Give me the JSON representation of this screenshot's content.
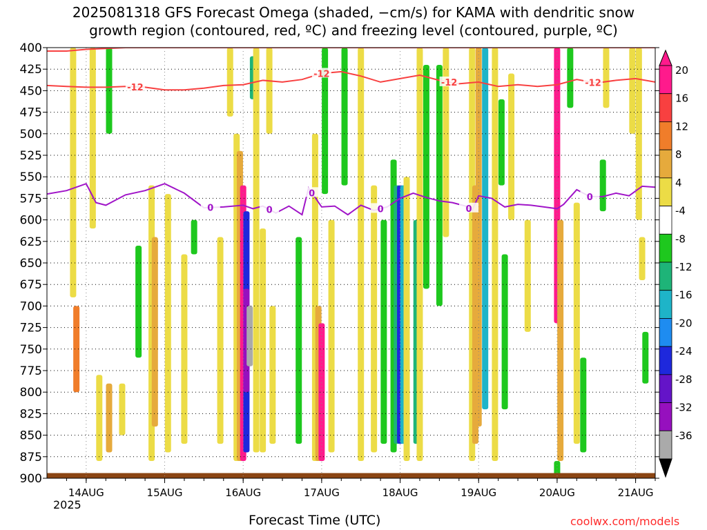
{
  "title_line1": "2025081318 GFS Forecast Omega (shaded, −cm/s) for KAMA with dendritic snow",
  "title_line2": "growth region (contoured, red, ºC) and freezing level (contoured, purple, ºC)",
  "xlabel": "Forecast Time (UTC)",
  "credit": "coolwx.com/models",
  "year": "2025",
  "chart_data": {
    "type": "heatmap",
    "y_axis": {
      "label": "",
      "range": [
        400,
        900
      ],
      "inverted": true,
      "ticks": [
        400,
        425,
        450,
        475,
        500,
        525,
        550,
        575,
        600,
        625,
        650,
        675,
        700,
        725,
        750,
        775,
        800,
        825,
        850,
        875,
        900
      ]
    },
    "x_axis": {
      "label": "Forecast Time (UTC)",
      "start_hour": -6,
      "end_hour": 180,
      "ticks": [
        {
          "label": "14AUG",
          "hour": 6
        },
        {
          "label": "15AUG",
          "hour": 30
        },
        {
          "label": "16AUG",
          "hour": 54
        },
        {
          "label": "17AUG",
          "hour": 78
        },
        {
          "label": "18AUG",
          "hour": 102
        },
        {
          "label": "19AUG",
          "hour": 126
        },
        {
          "label": "20AUG",
          "hour": 150
        },
        {
          "label": "21AUG",
          "hour": 174
        }
      ]
    },
    "grid": true,
    "colorbar": {
      "placement": "right",
      "tick_labels": [
        "20",
        "16",
        "12",
        "8",
        "4",
        "-4",
        "-8",
        "-12",
        "-16",
        "-20",
        "-24",
        "-28",
        "-32",
        "-36"
      ],
      "colors": [
        "#ff1a8c",
        "#f84040",
        "#f07d2a",
        "#e6aa3c",
        "#ecdc46",
        "#ffffff",
        "#1ec81e",
        "#1eb478",
        "#1eb4c8",
        "#1e8cf0",
        "#1e28dc",
        "#6414c8",
        "#9610be",
        "#aaaaaa"
      ]
    },
    "shaded_regions": [
      {
        "hour": 2,
        "p_top": 400,
        "p_bot": 690,
        "value": 6
      },
      {
        "hour": 3,
        "p_top": 700,
        "p_bot": 800,
        "value": 14
      },
      {
        "hour": 8,
        "p_top": 400,
        "p_bot": 610,
        "value": 6
      },
      {
        "hour": 10,
        "p_top": 780,
        "p_bot": 880,
        "value": 6
      },
      {
        "hour": 13,
        "p_top": 790,
        "p_bot": 870,
        "value": 10
      },
      {
        "hour": 13,
        "p_top": 400,
        "p_bot": 500,
        "value": -6
      },
      {
        "hour": 17,
        "p_top": 790,
        "p_bot": 850,
        "value": 6
      },
      {
        "hour": 22,
        "p_top": 630,
        "p_bot": 760,
        "value": -6
      },
      {
        "hour": 26,
        "p_top": 560,
        "p_bot": 880,
        "value": 6
      },
      {
        "hour": 27,
        "p_top": 620,
        "p_bot": 840,
        "value": 10
      },
      {
        "hour": 31,
        "p_top": 570,
        "p_bot": 870,
        "value": 6
      },
      {
        "hour": 36,
        "p_top": 640,
        "p_bot": 860,
        "value": 6
      },
      {
        "hour": 39,
        "p_top": 600,
        "p_bot": 640,
        "value": -6
      },
      {
        "hour": 47,
        "p_top": 620,
        "p_bot": 860,
        "value": 6
      },
      {
        "hour": 50,
        "p_top": 400,
        "p_bot": 480,
        "value": 6
      },
      {
        "hour": 52,
        "p_top": 500,
        "p_bot": 880,
        "value": 6
      },
      {
        "hour": 53,
        "p_top": 520,
        "p_bot": 880,
        "value": 10
      },
      {
        "hour": 54,
        "p_top": 560,
        "p_bot": 880,
        "value": 20
      },
      {
        "hour": 55,
        "p_top": 590,
        "p_bot": 870,
        "value": -20
      },
      {
        "hour": 55,
        "p_top": 680,
        "p_bot": 800,
        "value": -30
      },
      {
        "hour": 56,
        "p_top": 700,
        "p_bot": 770,
        "value": -36
      },
      {
        "hour": 57,
        "p_top": 410,
        "p_bot": 460,
        "value": -10
      },
      {
        "hour": 58,
        "p_top": 400,
        "p_bot": 870,
        "value": 6
      },
      {
        "hour": 60,
        "p_top": 610,
        "p_bot": 870,
        "value": 6
      },
      {
        "hour": 62,
        "p_top": 400,
        "p_bot": 500,
        "value": 6
      },
      {
        "hour": 63,
        "p_top": 700,
        "p_bot": 860,
        "value": 6
      },
      {
        "hour": 71,
        "p_top": 620,
        "p_bot": 860,
        "value": -6
      },
      {
        "hour": 76,
        "p_top": 500,
        "p_bot": 880,
        "value": 6
      },
      {
        "hour": 77,
        "p_top": 700,
        "p_bot": 880,
        "value": 10
      },
      {
        "hour": 78,
        "p_top": 720,
        "p_bot": 880,
        "value": 20
      },
      {
        "hour": 79,
        "p_top": 400,
        "p_bot": 570,
        "value": -6
      },
      {
        "hour": 81,
        "p_top": 600,
        "p_bot": 870,
        "value": 6
      },
      {
        "hour": 85,
        "p_top": 400,
        "p_bot": 560,
        "value": -6
      },
      {
        "hour": 90,
        "p_top": 400,
        "p_bot": 880,
        "value": 6
      },
      {
        "hour": 94,
        "p_top": 560,
        "p_bot": 870,
        "value": 6
      },
      {
        "hour": 97,
        "p_top": 600,
        "p_bot": 860,
        "value": -6
      },
      {
        "hour": 100,
        "p_top": 530,
        "p_bot": 870,
        "value": -6
      },
      {
        "hour": 101,
        "p_top": 560,
        "p_bot": 860,
        "value": -10
      },
      {
        "hour": 102,
        "p_top": 560,
        "p_bot": 860,
        "value": -20
      },
      {
        "hour": 103,
        "p_top": 560,
        "p_bot": 860,
        "value": -14
      },
      {
        "hour": 104,
        "p_top": 550,
        "p_bot": 880,
        "value": 6
      },
      {
        "hour": 107,
        "p_top": 600,
        "p_bot": 860,
        "value": -10
      },
      {
        "hour": 108,
        "p_top": 400,
        "p_bot": 880,
        "value": 6
      },
      {
        "hour": 110,
        "p_top": 420,
        "p_bot": 680,
        "value": -6
      },
      {
        "hour": 114,
        "p_top": 420,
        "p_bot": 700,
        "value": -6
      },
      {
        "hour": 116,
        "p_top": 400,
        "p_bot": 620,
        "value": 6
      },
      {
        "hour": 124,
        "p_top": 400,
        "p_bot": 880,
        "value": 6
      },
      {
        "hour": 125,
        "p_top": 560,
        "p_bot": 860,
        "value": 10
      },
      {
        "hour": 126,
        "p_top": 400,
        "p_bot": 840,
        "value": 10
      },
      {
        "hour": 128,
        "p_top": 400,
        "p_bot": 820,
        "value": -14
      },
      {
        "hour": 131,
        "p_top": 400,
        "p_bot": 880,
        "value": 6
      },
      {
        "hour": 133,
        "p_top": 460,
        "p_bot": 560,
        "value": -6
      },
      {
        "hour": 134,
        "p_top": 640,
        "p_bot": 820,
        "value": -6
      },
      {
        "hour": 136,
        "p_top": 430,
        "p_bot": 600,
        "value": 6
      },
      {
        "hour": 141,
        "p_top": 600,
        "p_bot": 730,
        "value": 6
      },
      {
        "hour": 150,
        "p_top": 400,
        "p_bot": 720,
        "value": 20
      },
      {
        "hour": 151,
        "p_top": 600,
        "p_bot": 880,
        "value": 10
      },
      {
        "hour": 150,
        "p_top": 880,
        "p_bot": 898,
        "value": -6
      },
      {
        "hour": 154,
        "p_top": 400,
        "p_bot": 470,
        "value": -6
      },
      {
        "hour": 156,
        "p_top": 580,
        "p_bot": 860,
        "value": 6
      },
      {
        "hour": 158,
        "p_top": 760,
        "p_bot": 870,
        "value": -6
      },
      {
        "hour": 164,
        "p_top": 530,
        "p_bot": 590,
        "value": -6
      },
      {
        "hour": 165,
        "p_top": 400,
        "p_bot": 470,
        "value": 6
      },
      {
        "hour": 173,
        "p_top": 400,
        "p_bot": 500,
        "value": 6
      },
      {
        "hour": 175,
        "p_top": 400,
        "p_bot": 600,
        "value": 6
      },
      {
        "hour": 176,
        "p_top": 620,
        "p_bot": 670,
        "value": 6
      },
      {
        "hour": 177,
        "p_top": 730,
        "p_bot": 790,
        "value": -6
      }
    ],
    "contours": [
      {
        "label": "-12",
        "color": "#f84040",
        "level_labels": [
          "-12",
          "-12",
          "-12",
          "-12"
        ],
        "label_hours": [
          21,
          78,
          117,
          161
        ],
        "lower_line": {
          "hour": [
            -6,
            0,
            6,
            12,
            18,
            24,
            30,
            36,
            42,
            48,
            54,
            60,
            66,
            72,
            78,
            84,
            90,
            96,
            102,
            108,
            114,
            120,
            126,
            132,
            138,
            144,
            150,
            156,
            162,
            168,
            174,
            180
          ],
          "p": [
            444,
            445,
            446,
            446,
            445,
            446,
            449,
            449,
            447,
            444,
            443,
            438,
            440,
            437,
            430,
            428,
            433,
            440,
            436,
            432,
            438,
            442,
            440,
            445,
            443,
            445,
            443,
            437,
            441,
            438,
            436,
            440
          ]
        },
        "upper_line": {
          "hour": [
            -6,
            0,
            6,
            12,
            18,
            24,
            30,
            36,
            42,
            48,
            54,
            60,
            66,
            72,
            78,
            84,
            90,
            96,
            102,
            108,
            114,
            120,
            126,
            132,
            138,
            144,
            150,
            156,
            162,
            168,
            174,
            180
          ],
          "p": [
            404,
            404,
            402,
            401,
            400,
            400,
            400,
            400,
            400,
            400,
            400,
            400,
            400,
            400,
            400,
            400,
            400,
            400,
            400,
            400,
            400,
            400,
            400,
            400,
            400,
            400,
            400,
            400,
            400,
            400,
            400,
            400
          ]
        }
      },
      {
        "label": "0",
        "color": "#a014c8",
        "level_labels": [
          "0",
          "0",
          "0",
          "0",
          "0",
          "0"
        ],
        "label_hours": [
          44,
          62,
          75,
          96,
          123,
          160
        ],
        "line": {
          "hour": [
            -6,
            0,
            6,
            9,
            12,
            18,
            24,
            30,
            36,
            42,
            48,
            54,
            57,
            60,
            64,
            68,
            72,
            74,
            78,
            82,
            86,
            90,
            94,
            98,
            102,
            106,
            110,
            114,
            118,
            122,
            124,
            126,
            130,
            134,
            138,
            142,
            146,
            150,
            152,
            156,
            160,
            164,
            168,
            172,
            176,
            180
          ],
          "p": [
            570,
            566,
            558,
            580,
            583,
            571,
            566,
            558,
            569,
            586,
            585,
            583,
            587,
            584,
            592,
            584,
            594,
            563,
            585,
            584,
            594,
            583,
            589,
            585,
            575,
            569,
            574,
            578,
            580,
            584,
            589,
            572,
            575,
            585,
            582,
            583,
            585,
            587,
            582,
            565,
            573,
            573,
            569,
            572,
            561,
            562
          ]
        }
      }
    ],
    "surface": {
      "color": "#8b4513",
      "p_top": 894,
      "p_bot": 900
    }
  }
}
